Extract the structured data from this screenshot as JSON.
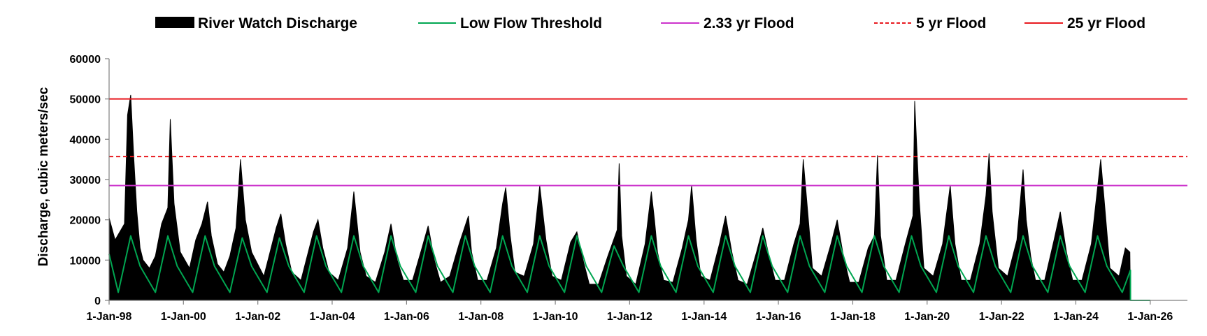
{
  "chart_data": {
    "type": "area",
    "title": "",
    "xlabel": "",
    "ylabel": "Discharge, cubic meters/sec",
    "x_range": [
      "1998-01-01",
      "2027-01-01"
    ],
    "ylim": [
      0,
      60000
    ],
    "y_ticks": [
      0,
      10000,
      20000,
      30000,
      40000,
      50000,
      60000
    ],
    "x_ticks": [
      "1-Jan-98",
      "1-Jan-00",
      "1-Jan-02",
      "1-Jan-04",
      "1-Jan-06",
      "1-Jan-08",
      "1-Jan-10",
      "1-Jan-12",
      "1-Jan-14",
      "1-Jan-16",
      "1-Jan-18",
      "1-Jan-20",
      "1-Jan-22",
      "1-Jan-24",
      "1-Jan-26"
    ],
    "x_tick_dates": [
      "1998-01-01",
      "2000-01-01",
      "2002-01-01",
      "2004-01-01",
      "2006-01-01",
      "2008-01-01",
      "2010-01-01",
      "2012-01-01",
      "2014-01-01",
      "2016-01-01",
      "2018-01-01",
      "2020-01-01",
      "2022-01-01",
      "2024-01-01",
      "2026-01-01"
    ],
    "grid": false,
    "legend_position": "top",
    "series": [
      {
        "name": "River Watch Discharge",
        "kind": "area",
        "color": "#000000",
        "x": [
          "1998-01-01",
          "1998-03-01",
          "1998-06-01",
          "1998-07-01",
          "1998-08-01",
          "1998-09-01",
          "1998-10-01",
          "1998-11-01",
          "1998-12-01",
          "1999-02-01",
          "1999-04-01",
          "1999-06-01",
          "1999-08-01",
          "1999-08-25",
          "1999-10-01",
          "1999-12-01",
          "2000-03-01",
          "2000-05-01",
          "2000-07-01",
          "2000-08-25",
          "2000-10-01",
          "2000-12-01",
          "2001-02-01",
          "2001-04-01",
          "2001-06-01",
          "2001-07-15",
          "2001-09-01",
          "2001-11-01",
          "2002-03-01",
          "2002-05-01",
          "2002-07-01",
          "2002-08-15",
          "2002-10-01",
          "2002-12-01",
          "2003-03-01",
          "2003-05-01",
          "2003-07-01",
          "2003-08-15",
          "2003-10-01",
          "2003-12-01",
          "2004-03-01",
          "2004-06-01",
          "2004-08-01",
          "2004-10-01",
          "2004-12-01",
          "2005-03-01",
          "2005-06-01",
          "2005-08-01",
          "2005-10-01",
          "2005-12-01",
          "2006-03-01",
          "2006-06-01",
          "2006-08-01",
          "2006-10-01",
          "2006-12-01",
          "2007-03-01",
          "2007-06-01",
          "2007-09-01",
          "2007-10-01",
          "2007-12-01",
          "2008-03-01",
          "2008-06-01",
          "2008-08-01",
          "2008-09-01",
          "2008-10-15",
          "2008-12-01",
          "2009-03-01",
          "2009-06-01",
          "2009-08-01",
          "2009-10-01",
          "2009-12-01",
          "2010-03-01",
          "2010-06-01",
          "2010-08-01",
          "2010-10-01",
          "2010-12-01",
          "2011-03-01",
          "2011-06-01",
          "2011-09-01",
          "2011-09-20",
          "2011-10-15",
          "2011-12-01",
          "2012-03-01",
          "2012-06-01",
          "2012-08-01",
          "2012-09-01",
          "2012-10-01",
          "2012-12-01",
          "2013-03-01",
          "2013-06-01",
          "2013-08-01",
          "2013-09-01",
          "2013-10-15",
          "2013-12-01",
          "2014-03-01",
          "2014-06-01",
          "2014-08-01",
          "2014-10-01",
          "2014-12-01",
          "2015-03-01",
          "2015-06-01",
          "2015-08-01",
          "2015-10-01",
          "2015-12-01",
          "2016-03-01",
          "2016-06-01",
          "2016-08-01",
          "2016-09-01",
          "2016-10-15",
          "2016-12-01",
          "2017-03-01",
          "2017-06-01",
          "2017-08-01",
          "2017-10-01",
          "2017-12-01",
          "2018-03-01",
          "2018-06-01",
          "2018-08-01",
          "2018-09-01",
          "2018-10-01",
          "2018-12-01",
          "2019-03-01",
          "2019-06-01",
          "2019-08-15",
          "2019-09-01",
          "2019-10-15",
          "2019-12-01",
          "2020-03-01",
          "2020-06-01",
          "2020-08-15",
          "2020-10-01",
          "2020-12-01",
          "2021-03-01",
          "2021-06-01",
          "2021-08-01",
          "2021-09-01",
          "2021-10-01",
          "2021-12-01",
          "2022-03-01",
          "2022-06-01",
          "2022-08-01",
          "2022-09-01",
          "2022-10-15",
          "2022-12-01",
          "2023-03-01",
          "2023-06-01",
          "2023-08-01",
          "2023-10-01",
          "2023-12-01",
          "2024-03-01",
          "2024-06-01",
          "2024-08-01",
          "2024-09-01",
          "2024-10-15",
          "2024-12-01",
          "2025-03-01",
          "2025-05-01",
          "2025-06-15",
          "2025-06-20"
        ],
        "values": [
          20500,
          15000,
          19000,
          46000,
          51000,
          35000,
          22000,
          13000,
          10000,
          8000,
          11000,
          19000,
          23000,
          45000,
          24000,
          12000,
          8000,
          15000,
          19000,
          24500,
          16000,
          9000,
          7000,
          11000,
          18000,
          35000,
          20000,
          12000,
          6000,
          12000,
          18000,
          21500,
          14000,
          7000,
          5000,
          11000,
          17000,
          20000,
          13000,
          7000,
          5000,
          13000,
          27000,
          12000,
          6000,
          4500,
          12000,
          19000,
          10000,
          5000,
          5000,
          13000,
          18500,
          10000,
          4500,
          6000,
          14000,
          21000,
          12000,
          5000,
          5000,
          13000,
          24000,
          28000,
          16000,
          7000,
          6000,
          14000,
          28500,
          15000,
          6000,
          5000,
          14500,
          17000,
          10000,
          4000,
          4000,
          11000,
          17500,
          34000,
          16000,
          6000,
          4000,
          14000,
          27000,
          20000,
          12000,
          5000,
          4500,
          13000,
          20000,
          28500,
          15000,
          6000,
          5000,
          14000,
          21000,
          12000,
          5000,
          4000,
          12000,
          18000,
          11000,
          5000,
          5000,
          14000,
          19000,
          35000,
          22000,
          8000,
          6000,
          14000,
          20000,
          11000,
          4500,
          4500,
          13000,
          16000,
          36000,
          16000,
          5000,
          5000,
          14000,
          21000,
          49500,
          25000,
          8000,
          6000,
          14000,
          28500,
          14000,
          5000,
          5000,
          14000,
          26000,
          36500,
          22000,
          8000,
          6000,
          15000,
          32500,
          20000,
          11000,
          5000,
          5000,
          15000,
          22000,
          12000,
          5000,
          5000,
          14000,
          28000,
          35000,
          22000,
          8000,
          6000,
          13000,
          12000,
          0
        ]
      },
      {
        "name": "Low Flow Threshold",
        "kind": "line",
        "color": "#00a651",
        "x": [
          "1998-01-01",
          "1998-04-01",
          "1998-08-01",
          "1998-11-01",
          "1999-04-01",
          "1999-08-01",
          "1999-11-01",
          "2000-04-01",
          "2000-08-01",
          "2000-11-01",
          "2001-04-01",
          "2001-08-01",
          "2001-11-01",
          "2002-04-01",
          "2002-08-01",
          "2002-11-01",
          "2003-04-01",
          "2003-08-01",
          "2003-11-01",
          "2004-04-01",
          "2004-08-01",
          "2004-11-01",
          "2005-04-01",
          "2005-08-01",
          "2005-11-01",
          "2006-04-01",
          "2006-08-01",
          "2006-11-01",
          "2007-04-01",
          "2007-08-01",
          "2007-11-01",
          "2008-04-01",
          "2008-08-01",
          "2008-11-01",
          "2009-04-01",
          "2009-08-01",
          "2009-11-01",
          "2010-04-01",
          "2010-08-01",
          "2010-11-01",
          "2011-04-01",
          "2011-08-01",
          "2011-11-01",
          "2012-04-01",
          "2012-08-01",
          "2012-11-01",
          "2013-04-01",
          "2013-08-01",
          "2013-11-01",
          "2014-04-01",
          "2014-08-01",
          "2014-11-01",
          "2015-04-01",
          "2015-08-01",
          "2015-11-01",
          "2016-04-01",
          "2016-08-01",
          "2016-11-01",
          "2017-04-01",
          "2017-08-01",
          "2017-11-01",
          "2018-04-01",
          "2018-08-01",
          "2018-11-01",
          "2019-04-01",
          "2019-08-01",
          "2019-11-01",
          "2020-04-01",
          "2020-08-01",
          "2020-11-01",
          "2021-04-01",
          "2021-08-01",
          "2021-11-01",
          "2022-04-01",
          "2022-08-01",
          "2022-11-01",
          "2023-04-01",
          "2023-08-01",
          "2023-11-01",
          "2024-04-01",
          "2024-08-01",
          "2024-11-01",
          "2025-04-01",
          "2025-06-20",
          "2025-06-21",
          "2026-01-01"
        ],
        "values": [
          11500,
          2000,
          16000,
          8500,
          2000,
          16000,
          8500,
          2000,
          16000,
          8500,
          2000,
          15500,
          8500,
          2000,
          15500,
          8500,
          2000,
          16000,
          8500,
          2000,
          16000,
          8500,
          2000,
          16000,
          8500,
          2000,
          16000,
          8500,
          2000,
          16000,
          8500,
          2000,
          16000,
          8500,
          2000,
          16000,
          8500,
          2000,
          16000,
          8500,
          2000,
          13500,
          8500,
          2000,
          16000,
          8500,
          2000,
          16000,
          8500,
          2000,
          16000,
          8500,
          2000,
          16000,
          8500,
          2000,
          16000,
          8500,
          2000,
          16000,
          8500,
          2000,
          16000,
          8500,
          2000,
          16000,
          8500,
          2000,
          16000,
          8500,
          2000,
          16000,
          8500,
          2000,
          16000,
          8500,
          2000,
          16000,
          8500,
          2000,
          16000,
          8500,
          2000,
          7500,
          0,
          0
        ]
      },
      {
        "name": "2.33 yr Flood",
        "kind": "hline",
        "color": "#cc33cc",
        "value": 28500,
        "dash": "solid"
      },
      {
        "name": "5 yr Flood",
        "kind": "hline",
        "color": "#e8191f",
        "value": 35700,
        "dash": "dashed"
      },
      {
        "name": "25 yr Flood",
        "kind": "hline",
        "color": "#e8191f",
        "value": 50000,
        "dash": "solid"
      }
    ]
  }
}
